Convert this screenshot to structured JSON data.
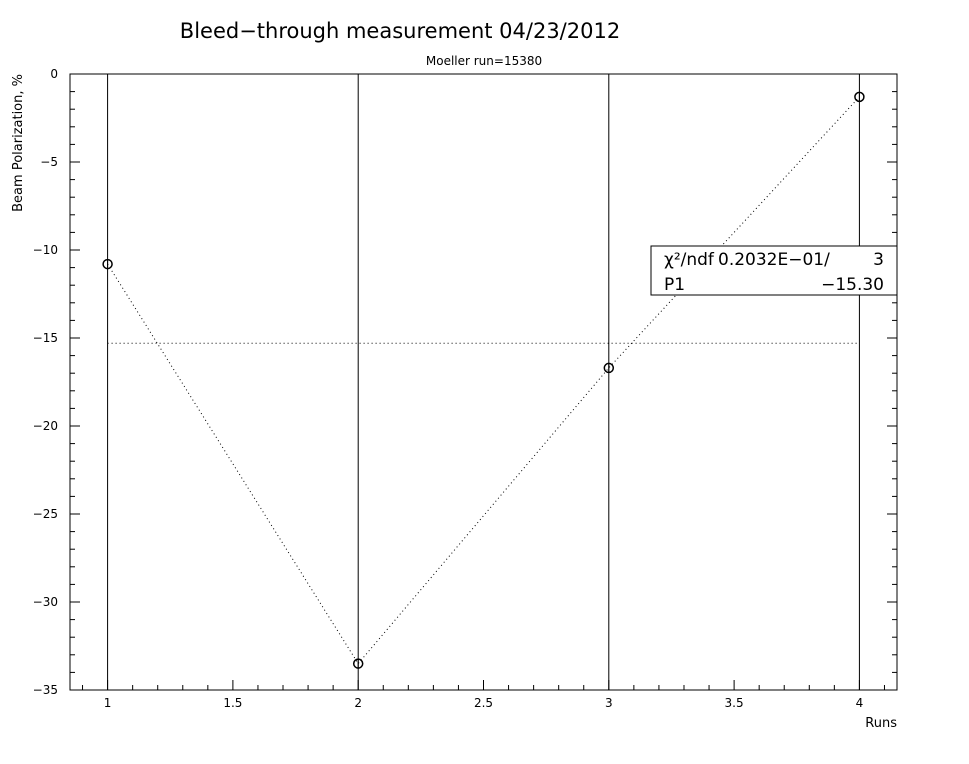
{
  "chart_data": {
    "type": "scatter",
    "title": "Bleed−through measurement 04/23/2012",
    "subtitle": "Moeller run=15380",
    "xlabel": "Runs",
    "ylabel": "Beam Polarization, %",
    "xlim": [
      0.85,
      4.15
    ],
    "ylim": [
      -35,
      0
    ],
    "x_ticks": [
      1,
      1.5,
      2,
      2.5,
      3,
      3.5,
      4
    ],
    "y_ticks": [
      0,
      -5,
      -10,
      -15,
      -20,
      -25,
      -30,
      -35
    ],
    "vertical_gridlines_at": [
      1,
      2,
      3,
      4
    ],
    "grid": false,
    "series": [
      {
        "x": [
          1,
          2,
          3,
          4
        ],
        "y": [
          -10.8,
          -33.5,
          -16.7,
          -1.3
        ],
        "marker": "open-circle",
        "connect": "dotted"
      }
    ],
    "fit": {
      "type": "constant",
      "value": -15.3,
      "line_style": "dotted"
    },
    "stats_box": {
      "row1_label": "χ²/ndf",
      "row1_value": "0.2032E−01/",
      "row1_ndf": "3",
      "row2_label": "P1",
      "row2_value": "−15.30"
    },
    "colors": {
      "axis": "#000000",
      "data": "#000000",
      "background": "#ffffff"
    }
  }
}
